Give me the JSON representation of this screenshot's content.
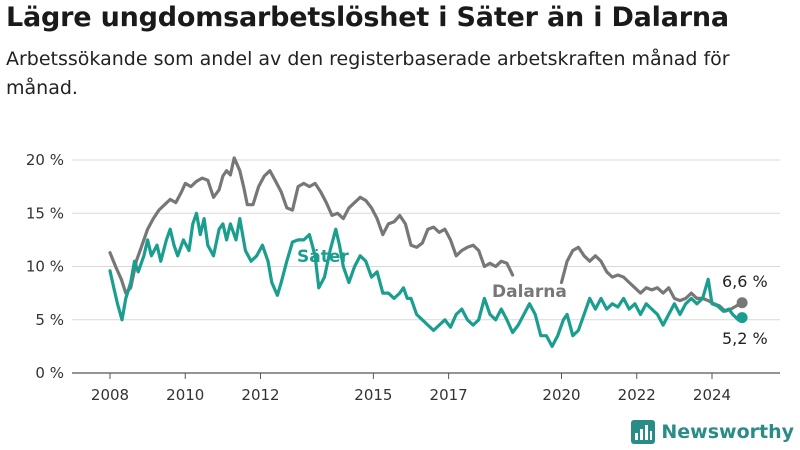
{
  "title": "Lägre ungdomsarbetslöshet i Säter än i Dalarna",
  "subtitle": "Arbetssökande som andel av den registerbaserade arbetskraften månad för månad.",
  "brand": {
    "name": "Newsworthy",
    "icon": "bar-chart-logo-icon",
    "color": "#2a8c87"
  },
  "chart_data": {
    "type": "line",
    "title": "Lägre ungdomsarbetslöshet i Säter än i Dalarna",
    "subtitle": "Arbetssökande som andel av den registerbaserade arbetskraften månad för månad.",
    "xlabel": "",
    "ylabel": "",
    "x_ticks": [
      "2008",
      "2010",
      "2012",
      "2015",
      "2017",
      "2020",
      "2022",
      "2024"
    ],
    "y_ticks": [
      "0 %",
      "5 %",
      "10 %",
      "15 %",
      "20 %"
    ],
    "xlim": [
      2007.6,
      2025.6
    ],
    "ylim": [
      0,
      20
    ],
    "grid": "horizontal",
    "legend": "none (direct labels)",
    "series": [
      {
        "name": "Dalarna",
        "color": "#777777",
        "end_label": "6,6 %",
        "points": [
          [
            2008.0,
            11.3
          ],
          [
            2008.15,
            10.0
          ],
          [
            2008.3,
            8.8
          ],
          [
            2008.42,
            7.5
          ],
          [
            2008.55,
            8.0
          ],
          [
            2008.7,
            10.5
          ],
          [
            2008.85,
            12.0
          ],
          [
            2009.0,
            13.5
          ],
          [
            2009.15,
            14.5
          ],
          [
            2009.3,
            15.3
          ],
          [
            2009.45,
            15.8
          ],
          [
            2009.6,
            16.3
          ],
          [
            2009.75,
            16.0
          ],
          [
            2009.9,
            17.0
          ],
          [
            2010.0,
            17.8
          ],
          [
            2010.15,
            17.5
          ],
          [
            2010.3,
            18.0
          ],
          [
            2010.45,
            18.3
          ],
          [
            2010.6,
            18.1
          ],
          [
            2010.75,
            16.5
          ],
          [
            2010.9,
            17.2
          ],
          [
            2011.0,
            18.5
          ],
          [
            2011.1,
            19.0
          ],
          [
            2011.2,
            18.6
          ],
          [
            2011.3,
            20.2
          ],
          [
            2011.45,
            19.0
          ],
          [
            2011.55,
            17.5
          ],
          [
            2011.65,
            15.8
          ],
          [
            2011.8,
            15.8
          ],
          [
            2011.95,
            17.5
          ],
          [
            2012.1,
            18.5
          ],
          [
            2012.25,
            19.0
          ],
          [
            2012.4,
            18.0
          ],
          [
            2012.55,
            17.0
          ],
          [
            2012.7,
            15.5
          ],
          [
            2012.85,
            15.3
          ],
          [
            2013.0,
            17.5
          ],
          [
            2013.15,
            17.8
          ],
          [
            2013.3,
            17.5
          ],
          [
            2013.45,
            17.8
          ],
          [
            2013.6,
            17.0
          ],
          [
            2013.75,
            16.0
          ],
          [
            2013.9,
            14.8
          ],
          [
            2014.05,
            15.0
          ],
          [
            2014.2,
            14.5
          ],
          [
            2014.35,
            15.5
          ],
          [
            2014.5,
            16.0
          ],
          [
            2014.65,
            16.5
          ],
          [
            2014.8,
            16.2
          ],
          [
            2014.95,
            15.5
          ],
          [
            2015.1,
            14.5
          ],
          [
            2015.25,
            13.0
          ],
          [
            2015.4,
            14.0
          ],
          [
            2015.55,
            14.2
          ],
          [
            2015.7,
            14.8
          ],
          [
            2015.85,
            14.0
          ],
          [
            2016.0,
            12.0
          ],
          [
            2016.15,
            11.8
          ],
          [
            2016.3,
            12.2
          ],
          [
            2016.45,
            13.5
          ],
          [
            2016.6,
            13.7
          ],
          [
            2016.75,
            13.2
          ],
          [
            2016.9,
            13.5
          ],
          [
            2017.05,
            12.5
          ],
          [
            2017.2,
            11.0
          ],
          [
            2017.35,
            11.5
          ],
          [
            2017.5,
            11.8
          ],
          [
            2017.65,
            12.0
          ],
          [
            2017.8,
            11.5
          ],
          [
            2017.95,
            10.0
          ],
          [
            2018.1,
            10.3
          ],
          [
            2018.25,
            10.0
          ],
          [
            2018.4,
            10.5
          ],
          [
            2018.55,
            10.3
          ],
          [
            2018.7,
            9.2
          ]
        ],
        "points_after_label": [
          [
            2020.0,
            8.5
          ],
          [
            2020.15,
            10.5
          ],
          [
            2020.3,
            11.5
          ],
          [
            2020.45,
            11.8
          ],
          [
            2020.6,
            11.0
          ],
          [
            2020.75,
            10.5
          ],
          [
            2020.9,
            11.0
          ],
          [
            2021.05,
            10.5
          ],
          [
            2021.2,
            9.5
          ],
          [
            2021.35,
            9.0
          ],
          [
            2021.5,
            9.2
          ],
          [
            2021.65,
            9.0
          ],
          [
            2021.8,
            8.5
          ],
          [
            2021.95,
            8.0
          ],
          [
            2022.1,
            7.5
          ],
          [
            2022.25,
            8.0
          ],
          [
            2022.4,
            7.8
          ],
          [
            2022.55,
            8.0
          ],
          [
            2022.7,
            7.5
          ],
          [
            2022.85,
            8.0
          ],
          [
            2023.0,
            7.0
          ],
          [
            2023.15,
            6.8
          ],
          [
            2023.3,
            7.0
          ],
          [
            2023.45,
            7.5
          ],
          [
            2023.6,
            7.0
          ],
          [
            2023.75,
            7.0
          ],
          [
            2023.9,
            6.8
          ],
          [
            2024.05,
            6.5
          ],
          [
            2024.2,
            6.3
          ],
          [
            2024.35,
            5.8
          ],
          [
            2024.5,
            6.0
          ],
          [
            2024.65,
            6.3
          ],
          [
            2024.8,
            6.6
          ]
        ]
      },
      {
        "name": "Säter",
        "color": "#1a9e8f",
        "end_label": "5,2 %",
        "points": [
          [
            2008.0,
            9.6
          ],
          [
            2008.1,
            8.0
          ],
          [
            2008.2,
            6.5
          ],
          [
            2008.32,
            5.0
          ],
          [
            2008.42,
            7.0
          ],
          [
            2008.55,
            8.5
          ],
          [
            2008.65,
            10.5
          ],
          [
            2008.75,
            9.5
          ],
          [
            2008.9,
            11.0
          ],
          [
            2009.0,
            12.5
          ],
          [
            2009.1,
            11.0
          ],
          [
            2009.25,
            12.0
          ],
          [
            2009.35,
            10.5
          ],
          [
            2009.5,
            12.5
          ],
          [
            2009.6,
            13.5
          ],
          [
            2009.7,
            12.0
          ],
          [
            2009.8,
            11.0
          ],
          [
            2009.95,
            12.5
          ],
          [
            2010.1,
            11.5
          ],
          [
            2010.2,
            14.0
          ],
          [
            2010.3,
            15.0
          ],
          [
            2010.4,
            13.0
          ],
          [
            2010.5,
            14.5
          ],
          [
            2010.6,
            12.0
          ],
          [
            2010.75,
            11.0
          ],
          [
            2010.9,
            13.5
          ],
          [
            2011.0,
            14.0
          ],
          [
            2011.1,
            12.5
          ],
          [
            2011.2,
            14.0
          ],
          [
            2011.35,
            12.5
          ],
          [
            2011.45,
            14.5
          ],
          [
            2011.6,
            11.5
          ],
          [
            2011.75,
            10.5
          ],
          [
            2011.9,
            11.0
          ],
          [
            2012.05,
            12.0
          ],
          [
            2012.2,
            10.5
          ],
          [
            2012.3,
            8.5
          ],
          [
            2012.45,
            7.3
          ],
          [
            2012.55,
            8.5
          ],
          [
            2012.7,
            10.5
          ],
          [
            2012.85,
            12.3
          ],
          [
            2013.0,
            12.5
          ],
          [
            2013.15,
            12.5
          ],
          [
            2013.3,
            13.0
          ],
          [
            2013.45,
            11.0
          ],
          [
            2013.55,
            8.0
          ],
          [
            2013.7,
            9.0
          ],
          [
            2013.85,
            11.5
          ],
          [
            2014.0,
            13.5
          ],
          [
            2014.1,
            12.0
          ],
          [
            2014.2,
            10.0
          ],
          [
            2014.35,
            8.5
          ],
          [
            2014.5,
            10.0
          ],
          [
            2014.65,
            11.0
          ],
          [
            2014.8,
            10.5
          ],
          [
            2014.95,
            9.0
          ],
          [
            2015.1,
            9.5
          ],
          [
            2015.25,
            7.5
          ],
          [
            2015.4,
            7.5
          ],
          [
            2015.55,
            7.0
          ],
          [
            2015.7,
            7.5
          ],
          [
            2015.8,
            8.0
          ],
          [
            2015.9,
            7.0
          ],
          [
            2016.0,
            7.0
          ],
          [
            2016.15,
            5.5
          ],
          [
            2016.3,
            5.0
          ],
          [
            2016.45,
            4.5
          ],
          [
            2016.6,
            4.0
          ],
          [
            2016.75,
            4.5
          ],
          [
            2016.9,
            5.0
          ],
          [
            2017.05,
            4.3
          ],
          [
            2017.2,
            5.5
          ],
          [
            2017.35,
            6.0
          ],
          [
            2017.5,
            5.0
          ],
          [
            2017.65,
            4.5
          ],
          [
            2017.8,
            5.0
          ],
          [
            2017.95,
            7.0
          ],
          [
            2018.1,
            5.5
          ],
          [
            2018.25,
            5.0
          ],
          [
            2018.4,
            6.0
          ],
          [
            2018.55,
            5.0
          ],
          [
            2018.7,
            3.8
          ],
          [
            2018.85,
            4.5
          ],
          [
            2019.0,
            5.5
          ],
          [
            2019.15,
            6.5
          ],
          [
            2019.3,
            5.5
          ],
          [
            2019.45,
            3.5
          ],
          [
            2019.6,
            3.5
          ],
          [
            2019.75,
            2.5
          ],
          [
            2019.9,
            3.5
          ],
          [
            2020.05,
            5.0
          ],
          [
            2020.15,
            5.5
          ],
          [
            2020.3,
            3.5
          ],
          [
            2020.45,
            4.0
          ],
          [
            2020.6,
            5.5
          ],
          [
            2020.75,
            7.0
          ],
          [
            2020.9,
            6.0
          ],
          [
            2021.05,
            7.0
          ],
          [
            2021.2,
            6.0
          ],
          [
            2021.35,
            6.5
          ],
          [
            2021.5,
            6.2
          ],
          [
            2021.65,
            7.0
          ],
          [
            2021.8,
            6.0
          ],
          [
            2021.95,
            6.5
          ],
          [
            2022.1,
            5.5
          ],
          [
            2022.25,
            6.5
          ],
          [
            2022.4,
            6.0
          ],
          [
            2022.55,
            5.5
          ],
          [
            2022.7,
            4.5
          ],
          [
            2022.85,
            5.5
          ],
          [
            2023.0,
            6.5
          ],
          [
            2023.15,
            5.5
          ],
          [
            2023.3,
            6.5
          ],
          [
            2023.45,
            7.0
          ],
          [
            2023.6,
            6.5
          ],
          [
            2023.75,
            7.0
          ],
          [
            2023.9,
            8.8
          ],
          [
            2024.0,
            6.5
          ],
          [
            2024.15,
            6.3
          ],
          [
            2024.3,
            5.8
          ],
          [
            2024.45,
            6.0
          ],
          [
            2024.55,
            5.5
          ],
          [
            2024.7,
            5.0
          ],
          [
            2024.8,
            5.2
          ]
        ]
      }
    ]
  }
}
